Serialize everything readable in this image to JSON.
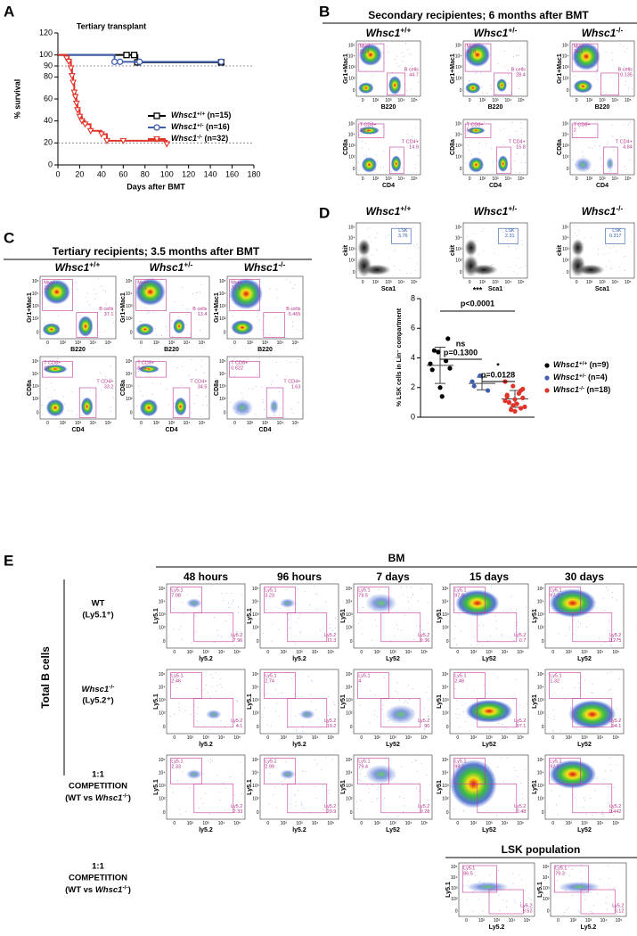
{
  "panel_labels": [
    "A",
    "B",
    "C",
    "D",
    "E"
  ],
  "chart_data": [
    {
      "type": "line",
      "title": "Tertiary transplant",
      "x_label": "Days after BMT",
      "y_label": "% survival",
      "xlim": [
        0,
        180
      ],
      "xticks": [
        0,
        20,
        40,
        60,
        80,
        100,
        120,
        140,
        160,
        180
      ],
      "ylim": [
        0,
        120
      ],
      "yticks": [
        0,
        20,
        40,
        60,
        80,
        90,
        100,
        120
      ],
      "reference_lines": [
        90,
        20
      ],
      "step": true,
      "series": [
        {
          "name": "Whsc1+/+ (n=15)",
          "color": "#000000",
          "marker": "square",
          "x": [
            0,
            63,
            70,
            73,
            150
          ],
          "values": [
            100,
            100,
            100,
            93.3,
            93.3
          ]
        },
        {
          "name": "Whsc1+/- (n=16)",
          "color": "#3f5fae",
          "marker": "circle",
          "x": [
            0,
            52,
            57,
            75,
            150
          ],
          "values": [
            100,
            93.8,
            93.8,
            93.8,
            93.8
          ]
        },
        {
          "name": "Whsc1-/- (n=32)",
          "color": "#e0342a",
          "marker": "triangle",
          "x": [
            0,
            8,
            10,
            12,
            13,
            14,
            15,
            16,
            17,
            18,
            20,
            22,
            25,
            30,
            40,
            45,
            60,
            100
          ],
          "values": [
            100,
            97,
            94,
            88,
            81,
            75,
            66,
            62,
            56,
            50,
            44,
            40,
            37,
            31,
            28,
            22,
            22,
            19
          ]
        }
      ]
    },
    {
      "type": "dot",
      "y_label": "% LSK cells in Lin⁻ compartment",
      "ylim": [
        0,
        8
      ],
      "yticks": [
        0,
        2,
        4,
        6,
        8
      ],
      "annotations": [
        "***",
        "p<0.0001",
        "ns",
        "p=0.1300",
        "*",
        "p=0.0128"
      ],
      "series": [
        {
          "name": "Whsc1+/+ (n=9)",
          "color": "#000000",
          "values": [
            3.6,
            4.4,
            3.8,
            3.2,
            2.0,
            5.3,
            4.5,
            1.4,
            3.3
          ]
        },
        {
          "name": "Whsc1+/- (n=4)",
          "color": "#3f5fae",
          "values": [
            2.4,
            2.8,
            1.8,
            2.1
          ]
        },
        {
          "name": "Whsc1-/- (n=18)",
          "color": "#e0342a",
          "values": [
            2.4,
            2.1,
            1.8,
            1.5,
            1.2,
            1.3,
            1.0,
            0.9,
            0.7,
            0.5,
            1.6,
            1.1,
            0.8,
            0.6,
            1.4,
            0.4,
            1.9,
            1.0
          ]
        }
      ]
    }
  ],
  "flow": {
    "tick_labels": [
      "0",
      "10²",
      "10³",
      "10⁴",
      "10⁵"
    ],
    "genotypes": [
      "Whsc1+/+",
      "Whsc1+/-",
      "Whsc1-/-"
    ],
    "B": {
      "title": "Secondary recipientes; 6 months after BMT",
      "rows": [
        {
          "y_label": "Gr1+Mac1",
          "x_label": "B220",
          "gates": [
            {
              "name": "Myel",
              "values": [
                24.4,
                42.9,
                74.5
              ]
            },
            {
              "name": "B cells",
              "values": [
                44.7,
                28.4,
                0.135
              ]
            }
          ]
        },
        {
          "y_label": "CD8a",
          "x_label": "CD4",
          "gates": [
            {
              "name": "T CD8+",
              "values": [
                10.2,
                5.2,
                2
              ]
            },
            {
              "name": "T CD4+",
              "values": [
                14.9,
                15.8,
                4.84
              ]
            }
          ]
        }
      ]
    },
    "C": {
      "title": "Tertiary recipients; 3.5 months after BMT",
      "rows": [
        {
          "y_label": "Gr1+Mac1",
          "x_label": "B220",
          "gates": [
            {
              "name": "Myel",
              "values": [
                22.3,
                47.1,
                72.1
              ]
            },
            {
              "name": "B cells",
              "values": [
                37.1,
                13.4,
                0.465
              ]
            }
          ]
        },
        {
          "y_label": "CD8a",
          "x_label": "CD4",
          "gates": [
            {
              "name": "T CD8+",
              "values": [
                13,
                8.44,
                0.622
              ]
            },
            {
              "name": "T CD4+",
              "values": [
                33.2,
                34.5,
                1.63
              ]
            }
          ]
        }
      ]
    },
    "D": {
      "y_label": "ckit",
      "x_label": "Sca1",
      "gate": "LSK",
      "values": [
        3.76,
        2.31,
        0.317
      ]
    },
    "E": {
      "header": "BM",
      "side_label": "Total B cells",
      "timepoints": [
        "48 hours",
        "96 hours",
        "7 days",
        "15 days",
        "30 days"
      ],
      "x_labels": [
        "ly5.2",
        "ly5.2",
        "Ly52",
        "Ly52",
        "Ly52"
      ],
      "y_labels": [
        "Ly5.1",
        "Ly5.1",
        "Ly51",
        "Ly51",
        "Ly51"
      ],
      "gate_names": [
        "Ly5.1",
        "Ly5.2"
      ],
      "rows": [
        {
          "label": [
            "WT",
            "(Ly5.1⁺)"
          ],
          "color": "#000000",
          "ly51": [
            7.08,
            3.23,
            79.5,
            97.9,
            97.2
          ],
          "ly52": [
            7.96,
            11.3,
            9.36,
            0.7,
            0.275
          ]
        },
        {
          "label": [
            "Whsc1-/-",
            "(Ly5.2⁺)"
          ],
          "color": "#e0342a",
          "ly51": [
            2.46,
            2.74,
            4,
            2.48,
            1.32
          ],
          "ly52": [
            4.1,
            19.2,
            90,
            97.1,
            94.1
          ]
        },
        {
          "label": [
            "1:1",
            "COMPETITION",
            "(WT vs Whsc1-/-)"
          ],
          "color": "#3f5fae",
          "ly51": [
            2.33,
            2.99,
            79.4,
            99.2,
            92.5
          ],
          "ly52": [
            2.33,
            20.9,
            9.28,
            0.48,
            0.442
          ]
        }
      ],
      "lsk": {
        "title": "LSK population",
        "x_label": "Ly5.2",
        "y_label": "Ly5.1",
        "ly51": [
          86.5,
          79.3
        ],
        "ly52": [
          8.52,
          6.12
        ]
      }
    }
  }
}
